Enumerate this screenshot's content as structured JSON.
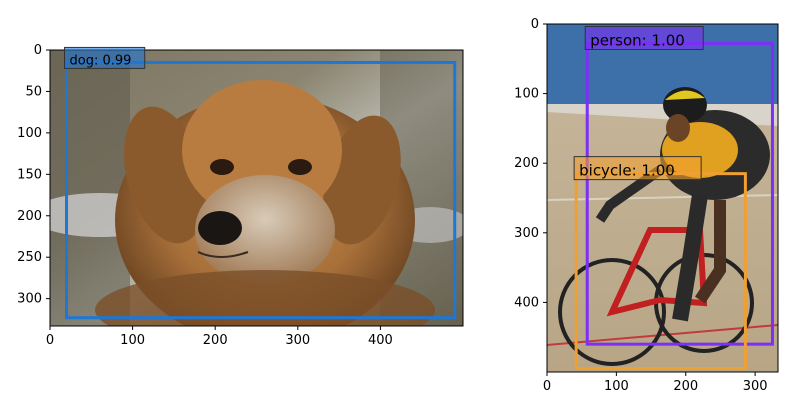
{
  "panels": [
    {
      "id": "dog",
      "xticks": [
        "0",
        "100",
        "200",
        "300",
        "400"
      ],
      "yticks": [
        "0",
        "50",
        "100",
        "150",
        "200",
        "250",
        "300"
      ],
      "xrange": [
        0,
        500
      ],
      "yrange": [
        0,
        333
      ],
      "detections": [
        {
          "label": "dog: 0.99",
          "class": "dog",
          "score": 0.99,
          "color": "#1f77d4",
          "box": [
            20,
            15,
            490,
            323
          ]
        }
      ]
    },
    {
      "id": "cyclist",
      "xticks": [
        "0",
        "100",
        "200",
        "300"
      ],
      "yticks": [
        "0",
        "100",
        "200",
        "300",
        "400"
      ],
      "xrange": [
        0,
        333
      ],
      "yrange": [
        0,
        500
      ],
      "detections": [
        {
          "label": "person: 1.00",
          "class": "person",
          "score": 1.0,
          "color": "#7b2ff7",
          "box": [
            58,
            28,
            325,
            460
          ]
        },
        {
          "label": "bicycle: 1.00",
          "class": "bicycle",
          "score": 1.0,
          "color": "#f0a030",
          "box": [
            42,
            215,
            286,
            495
          ]
        }
      ]
    }
  ]
}
